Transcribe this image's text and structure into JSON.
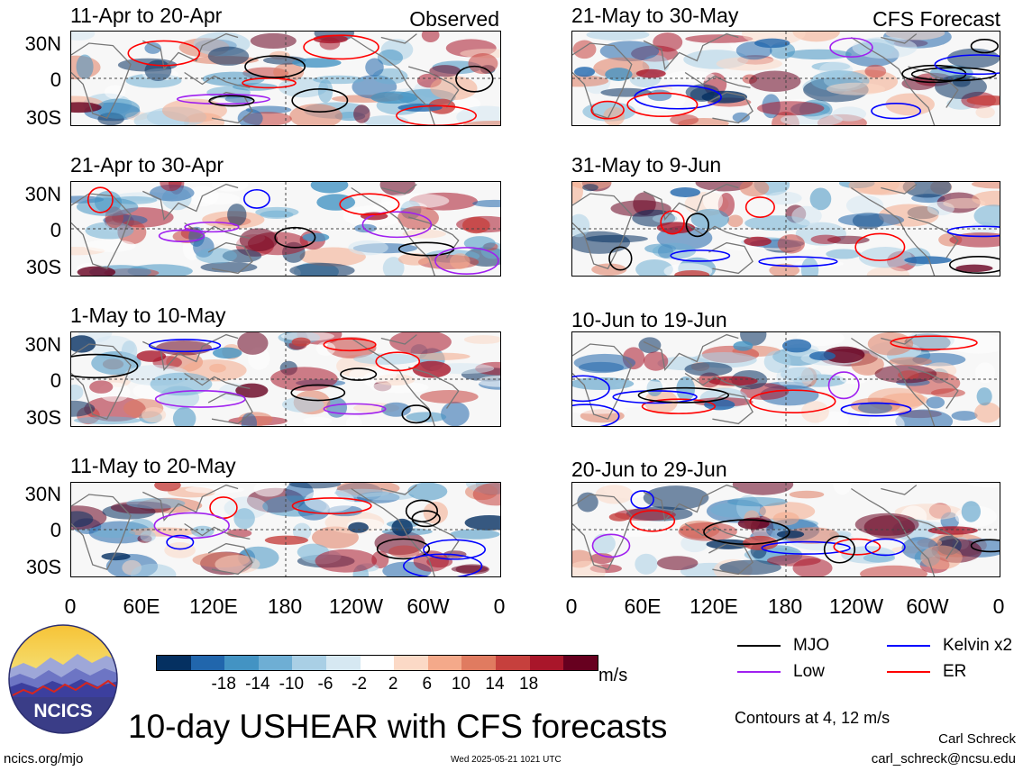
{
  "panels": [
    {
      "title": "11-Apr to 20-Apr",
      "tag": "Observed"
    },
    {
      "title": "21-Apr to 30-Apr",
      "tag": ""
    },
    {
      "title": "1-May to 10-May",
      "tag": ""
    },
    {
      "title": "11-May to 20-May",
      "tag": ""
    },
    {
      "title": "21-May to 30-May",
      "tag": "CFS Forecast"
    },
    {
      "title": "31-May to 9-Jun",
      "tag": ""
    },
    {
      "title": "10-Jun to 19-Jun",
      "tag": ""
    },
    {
      "title": "20-Jun to 29-Jun",
      "tag": ""
    }
  ],
  "lat_labels": [
    "30N",
    "0",
    "30S"
  ],
  "lon_labels": [
    "0",
    "60E",
    "120E",
    "180",
    "120W",
    "60W",
    "0"
  ],
  "colorbar": {
    "colors": [
      "#053061",
      "#2166ac",
      "#4393c3",
      "#6eaed4",
      "#a9cfe5",
      "#d6e8f2",
      "#ffffff",
      "#fbd9c6",
      "#f4a98a",
      "#e07b60",
      "#c6403d",
      "#a9162a",
      "#67001f"
    ],
    "tick_labels": [
      "-18",
      "-14",
      "-10",
      "-6",
      "-2",
      "2",
      "6",
      "10",
      "14",
      "18"
    ],
    "units": "m/s"
  },
  "contour_legend": [
    {
      "label": "MJO",
      "color": "#000000"
    },
    {
      "label": "Kelvin x2",
      "color": "#0000ff"
    },
    {
      "label": "Low",
      "color": "#a020f0"
    },
    {
      "label": "ER",
      "color": "#ff0000"
    }
  ],
  "logo": {
    "text": "NCICS"
  },
  "main_title": "10-day USHEAR with CFS forecasts",
  "contours_note": "Contours at 4, 12 m/s",
  "author": "Carl Schreck",
  "email": "carl_schreck@ncsu.edu",
  "site": "ncics.org/mjo",
  "timestamp": "Wed 2025-05-21 1021 UTC"
}
